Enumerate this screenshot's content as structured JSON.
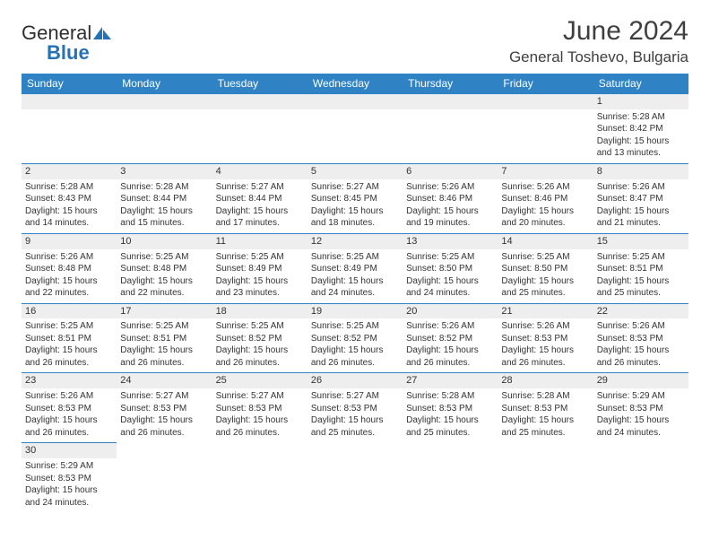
{
  "logo": {
    "general": "General",
    "blue": "Blue"
  },
  "title": "June 2024",
  "location": "General Toshevo, Bulgaria",
  "colors": {
    "header_bg": "#2f83c5",
    "header_text": "#ffffff",
    "daynum_bg": "#eeeeee",
    "divider": "#2f83c5",
    "text": "#333333",
    "logo_blue": "#2472b8"
  },
  "daynames": [
    "Sunday",
    "Monday",
    "Tuesday",
    "Wednesday",
    "Thursday",
    "Friday",
    "Saturday"
  ],
  "weeks": [
    [
      null,
      null,
      null,
      null,
      null,
      null,
      {
        "num": "1",
        "sunrise": "5:28 AM",
        "sunset": "8:42 PM",
        "daylight": "15 hours and 13 minutes."
      }
    ],
    [
      {
        "num": "2",
        "sunrise": "5:28 AM",
        "sunset": "8:43 PM",
        "daylight": "15 hours and 14 minutes."
      },
      {
        "num": "3",
        "sunrise": "5:28 AM",
        "sunset": "8:44 PM",
        "daylight": "15 hours and 15 minutes."
      },
      {
        "num": "4",
        "sunrise": "5:27 AM",
        "sunset": "8:44 PM",
        "daylight": "15 hours and 17 minutes."
      },
      {
        "num": "5",
        "sunrise": "5:27 AM",
        "sunset": "8:45 PM",
        "daylight": "15 hours and 18 minutes."
      },
      {
        "num": "6",
        "sunrise": "5:26 AM",
        "sunset": "8:46 PM",
        "daylight": "15 hours and 19 minutes."
      },
      {
        "num": "7",
        "sunrise": "5:26 AM",
        "sunset": "8:46 PM",
        "daylight": "15 hours and 20 minutes."
      },
      {
        "num": "8",
        "sunrise": "5:26 AM",
        "sunset": "8:47 PM",
        "daylight": "15 hours and 21 minutes."
      }
    ],
    [
      {
        "num": "9",
        "sunrise": "5:26 AM",
        "sunset": "8:48 PM",
        "daylight": "15 hours and 22 minutes."
      },
      {
        "num": "10",
        "sunrise": "5:25 AM",
        "sunset": "8:48 PM",
        "daylight": "15 hours and 22 minutes."
      },
      {
        "num": "11",
        "sunrise": "5:25 AM",
        "sunset": "8:49 PM",
        "daylight": "15 hours and 23 minutes."
      },
      {
        "num": "12",
        "sunrise": "5:25 AM",
        "sunset": "8:49 PM",
        "daylight": "15 hours and 24 minutes."
      },
      {
        "num": "13",
        "sunrise": "5:25 AM",
        "sunset": "8:50 PM",
        "daylight": "15 hours and 24 minutes."
      },
      {
        "num": "14",
        "sunrise": "5:25 AM",
        "sunset": "8:50 PM",
        "daylight": "15 hours and 25 minutes."
      },
      {
        "num": "15",
        "sunrise": "5:25 AM",
        "sunset": "8:51 PM",
        "daylight": "15 hours and 25 minutes."
      }
    ],
    [
      {
        "num": "16",
        "sunrise": "5:25 AM",
        "sunset": "8:51 PM",
        "daylight": "15 hours and 26 minutes."
      },
      {
        "num": "17",
        "sunrise": "5:25 AM",
        "sunset": "8:51 PM",
        "daylight": "15 hours and 26 minutes."
      },
      {
        "num": "18",
        "sunrise": "5:25 AM",
        "sunset": "8:52 PM",
        "daylight": "15 hours and 26 minutes."
      },
      {
        "num": "19",
        "sunrise": "5:25 AM",
        "sunset": "8:52 PM",
        "daylight": "15 hours and 26 minutes."
      },
      {
        "num": "20",
        "sunrise": "5:26 AM",
        "sunset": "8:52 PM",
        "daylight": "15 hours and 26 minutes."
      },
      {
        "num": "21",
        "sunrise": "5:26 AM",
        "sunset": "8:53 PM",
        "daylight": "15 hours and 26 minutes."
      },
      {
        "num": "22",
        "sunrise": "5:26 AM",
        "sunset": "8:53 PM",
        "daylight": "15 hours and 26 minutes."
      }
    ],
    [
      {
        "num": "23",
        "sunrise": "5:26 AM",
        "sunset": "8:53 PM",
        "daylight": "15 hours and 26 minutes."
      },
      {
        "num": "24",
        "sunrise": "5:27 AM",
        "sunset": "8:53 PM",
        "daylight": "15 hours and 26 minutes."
      },
      {
        "num": "25",
        "sunrise": "5:27 AM",
        "sunset": "8:53 PM",
        "daylight": "15 hours and 26 minutes."
      },
      {
        "num": "26",
        "sunrise": "5:27 AM",
        "sunset": "8:53 PM",
        "daylight": "15 hours and 25 minutes."
      },
      {
        "num": "27",
        "sunrise": "5:28 AM",
        "sunset": "8:53 PM",
        "daylight": "15 hours and 25 minutes."
      },
      {
        "num": "28",
        "sunrise": "5:28 AM",
        "sunset": "8:53 PM",
        "daylight": "15 hours and 25 minutes."
      },
      {
        "num": "29",
        "sunrise": "5:29 AM",
        "sunset": "8:53 PM",
        "daylight": "15 hours and 24 minutes."
      }
    ],
    [
      {
        "num": "30",
        "sunrise": "5:29 AM",
        "sunset": "8:53 PM",
        "daylight": "15 hours and 24 minutes."
      },
      null,
      null,
      null,
      null,
      null,
      null
    ]
  ],
  "labels": {
    "sunrise": "Sunrise:",
    "sunset": "Sunset:",
    "daylight": "Daylight:"
  }
}
